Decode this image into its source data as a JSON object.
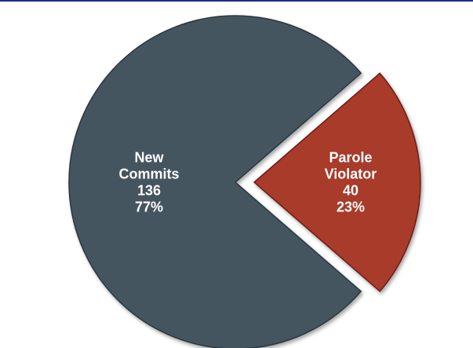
{
  "chart_data": {
    "type": "pie",
    "title": "",
    "slices": [
      {
        "label_lines": [
          "New",
          "Commits"
        ],
        "value": 136,
        "value_label": "136",
        "percent_label": "77%",
        "color": "#44545e",
        "exploded": false
      },
      {
        "label_lines": [
          "Parole",
          "Violator"
        ],
        "value": 40,
        "value_label": "40",
        "percent_label": "23%",
        "color": "#a83a2b",
        "exploded": true
      }
    ]
  },
  "colors": {
    "top_rule": "#1f2f86",
    "background": "#ffffff"
  }
}
